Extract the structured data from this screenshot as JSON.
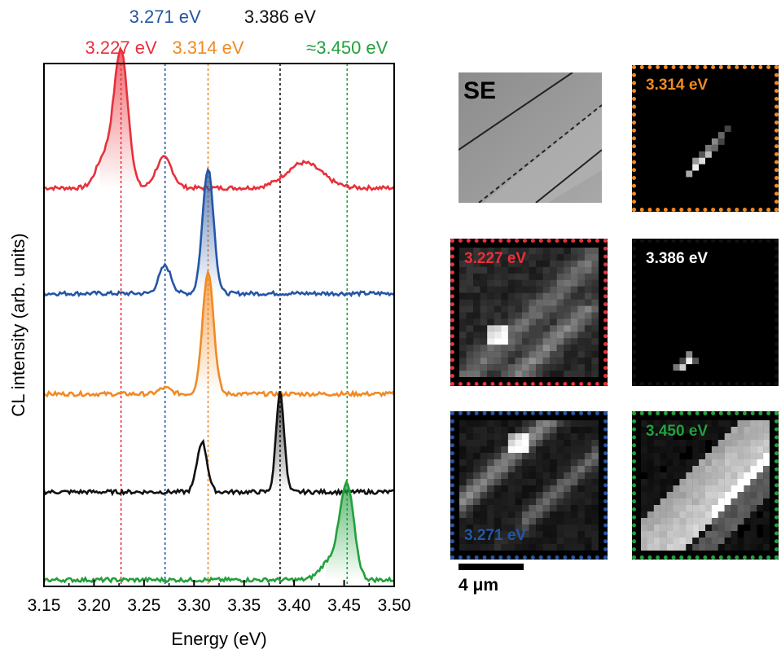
{
  "chart_data": {
    "type": "line",
    "xlabel": "Energy (eV)",
    "ylabel": "CL intensity (arb. units)",
    "xlim": [
      3.15,
      3.5
    ],
    "x_ticks": [
      "3.15",
      "3.20",
      "3.25",
      "3.30",
      "3.35",
      "3.40",
      "3.45",
      "3.50"
    ],
    "grid": false,
    "markers": [
      {
        "energy": 3.227,
        "label": "3.227 eV",
        "color": "#e8303a",
        "row": "lower"
      },
      {
        "energy": 3.271,
        "label": "3.271 eV",
        "color": "#2456a6",
        "row": "upper"
      },
      {
        "energy": 3.314,
        "label": "3.314 eV",
        "color": "#f08a24",
        "row": "lower"
      },
      {
        "energy": 3.386,
        "label": "3.386 eV",
        "color": "#111111",
        "row": "upper"
      },
      {
        "energy": 3.453,
        "label": "≈3.450 eV",
        "color": "#22a03c",
        "row": "lower"
      }
    ],
    "series": [
      {
        "color": "#e8303a",
        "baseline": 0.78,
        "peaks": [
          [
            3.227,
            0.27,
            0.007
          ],
          [
            3.21,
            0.06,
            0.008
          ],
          [
            3.27,
            0.06,
            0.008
          ],
          [
            3.41,
            0.05,
            0.018
          ]
        ]
      },
      {
        "color": "#2456a6",
        "baseline": 0.57,
        "peaks": [
          [
            3.314,
            0.25,
            0.0055
          ],
          [
            3.271,
            0.055,
            0.006
          ]
        ]
      },
      {
        "color": "#f08a24",
        "baseline": 0.37,
        "peaks": [
          [
            3.314,
            0.245,
            0.0055
          ],
          [
            3.271,
            0.012,
            0.006
          ]
        ]
      },
      {
        "color": "#111111",
        "baseline": 0.175,
        "peaks": [
          [
            3.308,
            0.1,
            0.005
          ],
          [
            3.386,
            0.2,
            0.004
          ]
        ]
      },
      {
        "color": "#22a03c",
        "baseline": 0.0,
        "peaks": [
          [
            3.453,
            0.18,
            0.007
          ],
          [
            3.437,
            0.04,
            0.01
          ]
        ]
      }
    ]
  },
  "maps": {
    "se_label": "SE",
    "m3314": {
      "label": "3.314 eV",
      "color": "#f08a24"
    },
    "m3227": {
      "label": "3.227 eV",
      "color": "#e8303a"
    },
    "m3386": {
      "label": "3.386 eV",
      "color": "#111111",
      "text_color": "#ffffff"
    },
    "m3271": {
      "label": "3.271 eV",
      "color": "#2456a6"
    },
    "m3450": {
      "label": "3.450 eV",
      "color": "#22a03c"
    }
  },
  "scalebar": {
    "label": "4 μm"
  }
}
